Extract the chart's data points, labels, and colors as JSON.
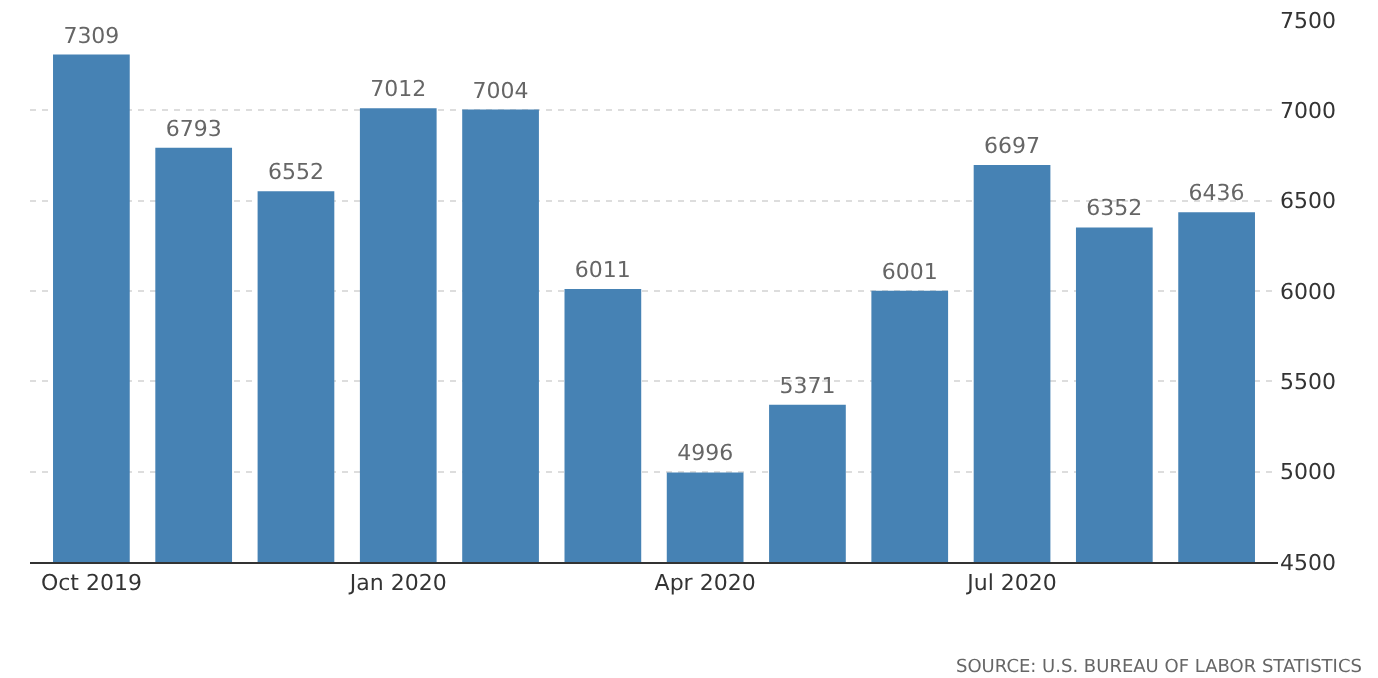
{
  "chart_data": {
    "type": "bar",
    "categories": [
      "Oct 2019",
      null,
      null,
      "Jan 2020",
      null,
      null,
      "Apr 2020",
      null,
      null,
      "Jul 2020",
      null,
      null
    ],
    "values": [
      7309,
      6793,
      6552,
      7012,
      7004,
      6011,
      4996,
      5371,
      6001,
      6697,
      6352,
      6436
    ],
    "color": "#4682b4",
    "ylim": [
      4500,
      7500
    ],
    "yticks": [
      4500,
      5000,
      5500,
      6000,
      6500,
      7000,
      7500
    ],
    "grid": "y",
    "data_labels": true,
    "legend": false,
    "annotations": [
      "SOURCE: U.S. BUREAU OF LABOR STATISTICS"
    ]
  }
}
